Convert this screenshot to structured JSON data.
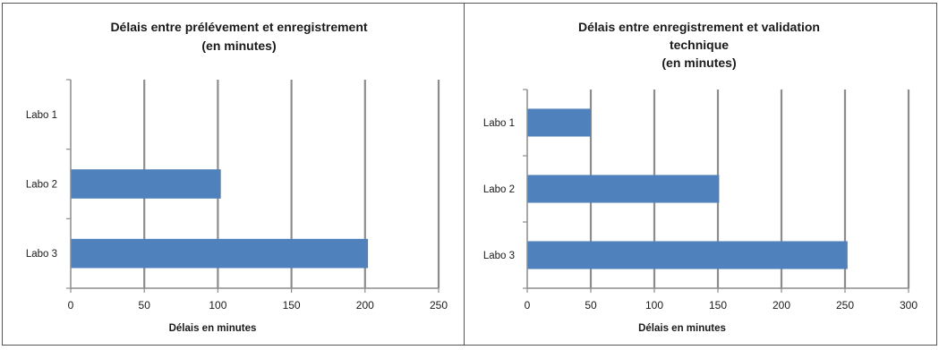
{
  "chart_data": [
    {
      "type": "bar",
      "orientation": "horizontal",
      "title_lines": [
        "Délais entre prélévement et enregistrement",
        "(en minutes)"
      ],
      "categories": [
        "Labo 1",
        "Labo 2",
        "Labo 3"
      ],
      "values": [
        0,
        102,
        202
      ],
      "xlabel": "Délais en minutes",
      "xlim": [
        0,
        250
      ],
      "xticks": [
        0,
        50,
        100,
        150,
        200,
        250
      ],
      "grid": true,
      "bar_color": "#4f81bd"
    },
    {
      "type": "bar",
      "orientation": "horizontal",
      "title_lines": [
        "Délais entre enregistrement et validation",
        "technique",
        "(en minutes)"
      ],
      "categories": [
        "Labo 1",
        "Labo 2",
        "Labo 3"
      ],
      "values": [
        50,
        151,
        252
      ],
      "xlabel": "Délais en minutes",
      "xlim": [
        0,
        300
      ],
      "xticks": [
        0,
        50,
        100,
        150,
        200,
        250,
        300
      ],
      "grid": true,
      "bar_color": "#4f81bd"
    }
  ]
}
